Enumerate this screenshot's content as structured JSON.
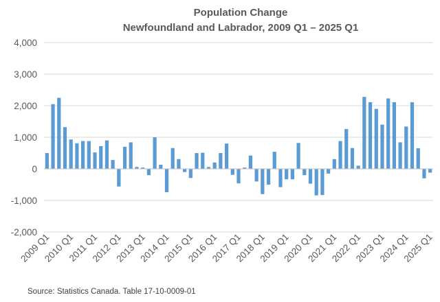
{
  "chart_data": {
    "type": "bar",
    "title": "Population Change",
    "subtitle": "Newfoundland and Labrador, 2009 Q1 – 2025 Q1",
    "xlabel": "",
    "ylabel": "",
    "ylim": [
      -2000,
      4000
    ],
    "y_ticks": [
      4000,
      3000,
      2000,
      1000,
      0,
      -1000,
      -2000
    ],
    "y_tick_labels": [
      "4,000",
      "3,000",
      "2,000",
      "1,000",
      "0",
      "-1,000",
      "-2,000"
    ],
    "x_tick_labels": [
      "2009 Q1",
      "2010 Q1",
      "2011 Q1",
      "2012 Q1",
      "2013 Q1",
      "2014 Q1",
      "2015 Q1",
      "2016 Q1",
      "2017 Q1",
      "2018 Q1",
      "2019 Q1",
      "2020 Q1",
      "2021 Q1",
      "2022 Q1",
      "2023 Q1",
      "2024 Q1",
      "2025 Q1"
    ],
    "grid": true,
    "bar_color": "#5b9bd5",
    "source": "Source: Statistics Canada. Table 17-10-0009-01",
    "categories": [
      "2009 Q1",
      "2009 Q2",
      "2009 Q3",
      "2009 Q4",
      "2010 Q1",
      "2010 Q2",
      "2010 Q3",
      "2010 Q4",
      "2011 Q1",
      "2011 Q2",
      "2011 Q3",
      "2011 Q4",
      "2012 Q1",
      "2012 Q2",
      "2012 Q3",
      "2012 Q4",
      "2013 Q1",
      "2013 Q2",
      "2013 Q3",
      "2013 Q4",
      "2014 Q1",
      "2014 Q2",
      "2014 Q3",
      "2014 Q4",
      "2015 Q1",
      "2015 Q2",
      "2015 Q3",
      "2015 Q4",
      "2016 Q1",
      "2016 Q2",
      "2016 Q3",
      "2016 Q4",
      "2017 Q1",
      "2017 Q2",
      "2017 Q3",
      "2017 Q4",
      "2018 Q1",
      "2018 Q2",
      "2018 Q3",
      "2018 Q4",
      "2019 Q1",
      "2019 Q2",
      "2019 Q3",
      "2019 Q4",
      "2020 Q1",
      "2020 Q2",
      "2020 Q3",
      "2020 Q4",
      "2021 Q1",
      "2021 Q2",
      "2021 Q3",
      "2021 Q4",
      "2022 Q1",
      "2022 Q2",
      "2022 Q3",
      "2022 Q4",
      "2023 Q1",
      "2023 Q2",
      "2023 Q3",
      "2023 Q4",
      "2024 Q1",
      "2024 Q2",
      "2024 Q3",
      "2024 Q4",
      "2025 Q1"
    ],
    "values": [
      500,
      2050,
      2250,
      1320,
      930,
      810,
      880,
      880,
      520,
      720,
      900,
      280,
      -560,
      700,
      840,
      60,
      40,
      -200,
      1000,
      130,
      -740,
      660,
      310,
      -100,
      -290,
      500,
      510,
      60,
      200,
      500,
      800,
      -190,
      -460,
      40,
      420,
      -400,
      -800,
      -500,
      540,
      -580,
      -330,
      -330,
      820,
      -200,
      -470,
      -840,
      -830,
      -150,
      310,
      880,
      1260,
      660,
      100,
      2280,
      2110,
      1900,
      1400,
      2230,
      2110,
      840,
      1340,
      2110,
      650,
      -300,
      -120
    ]
  }
}
